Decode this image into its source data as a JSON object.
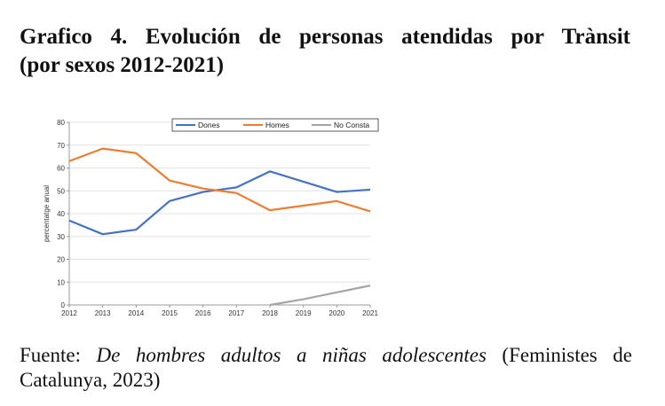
{
  "title": {
    "line1": "Grafico 4. Evolución de personas atendidas por Trànsit",
    "line2": "(por sexos 2012-2021)"
  },
  "source": {
    "prefix": "Fuente: ",
    "italic": "De hombres adultos a niñas adolescentes",
    "suffix": " (Feministes de Catalunya, 2023)"
  },
  "chart_data": {
    "type": "line",
    "title": "",
    "xlabel": "",
    "ylabel": "percentatge anual",
    "x": [
      "2012",
      "2013",
      "2014",
      "2015",
      "2016",
      "2017",
      "2018",
      "2019",
      "2020",
      "2021"
    ],
    "ylim": [
      0,
      80
    ],
    "yticks": [
      0,
      10,
      20,
      30,
      40,
      50,
      60,
      70,
      80
    ],
    "grid": true,
    "legend": "top-right",
    "series": [
      {
        "name": "Dones",
        "color": "#4472C4",
        "values": [
          37,
          31,
          33,
          45.5,
          49.5,
          51.5,
          58.5,
          54,
          49.5,
          50.5
        ]
      },
      {
        "name": "Homes",
        "color": "#ED7D31",
        "values": [
          63,
          68.5,
          66.5,
          54.5,
          51,
          49,
          41.5,
          43.5,
          45.5,
          41
        ]
      },
      {
        "name": "No Consta",
        "color": "#A5A5A5",
        "values": [
          null,
          null,
          null,
          null,
          null,
          null,
          0,
          2.5,
          5.5,
          8.5
        ]
      }
    ]
  }
}
